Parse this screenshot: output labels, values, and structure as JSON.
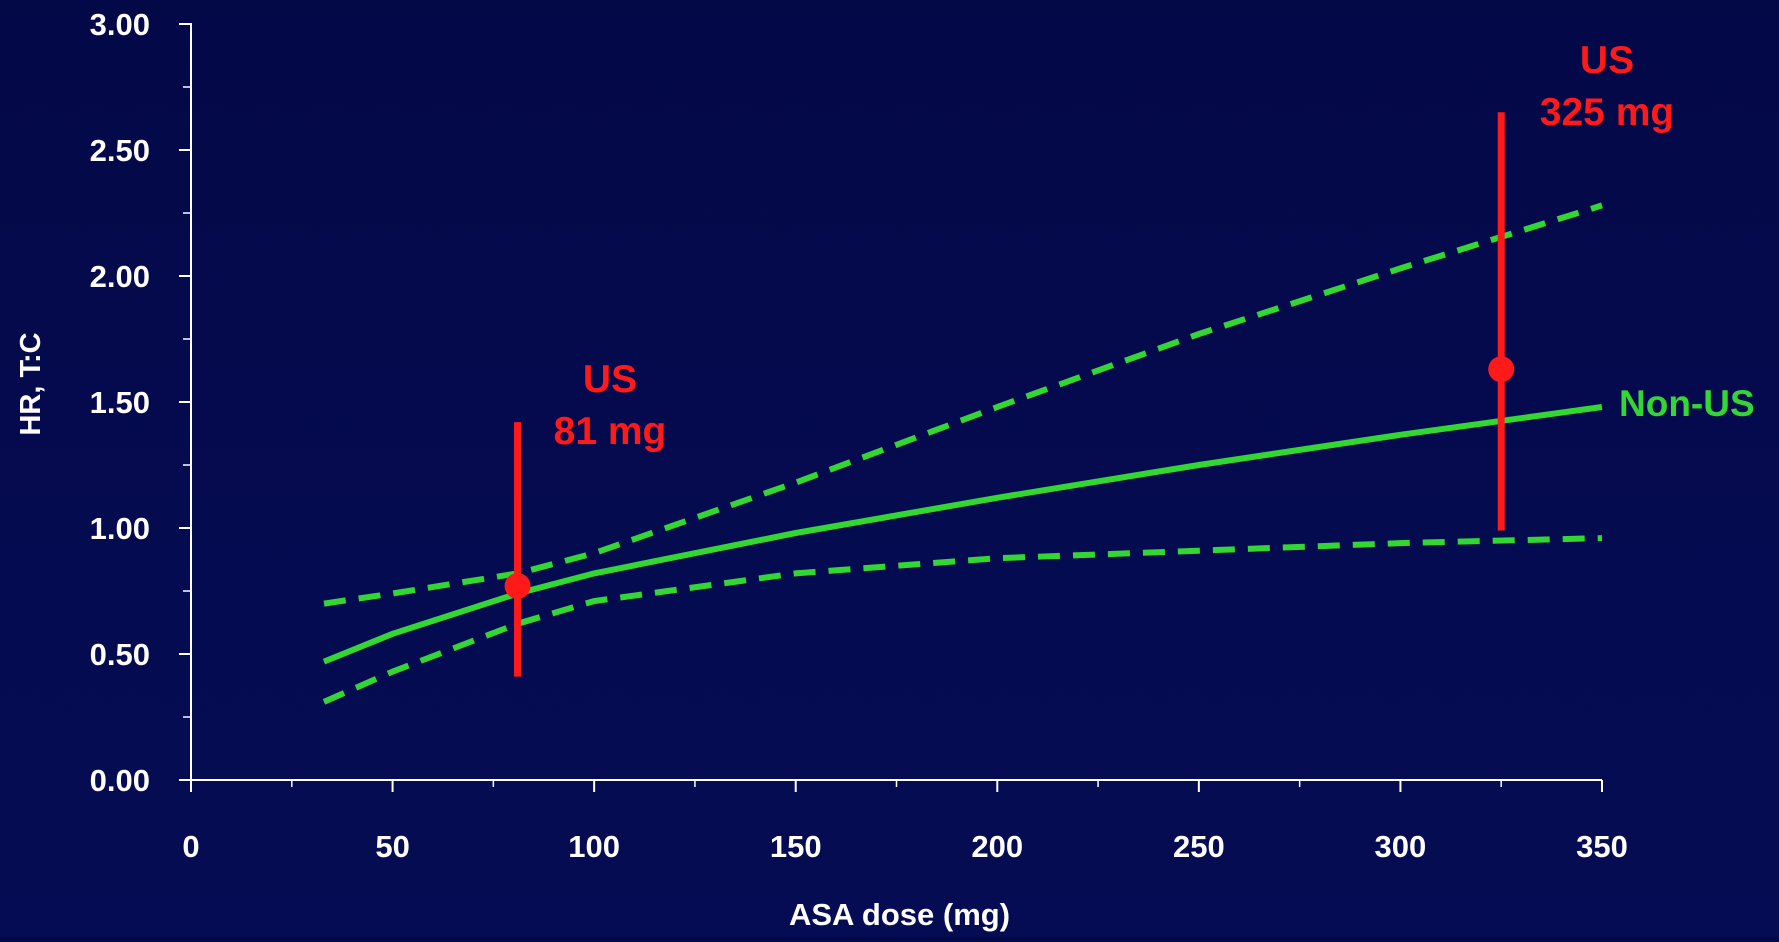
{
  "colors": {
    "background": "#040a4c",
    "axis": "#ffffff",
    "non_us": "#33d633",
    "us": "#ff1a1a"
  },
  "chart_data": {
    "type": "line",
    "xlabel": "ASA dose  (mg)",
    "ylabel": "HR, T:C",
    "xlim": [
      0,
      350
    ],
    "ylim": [
      0,
      3
    ],
    "x_ticks": [
      0,
      50,
      100,
      150,
      200,
      250,
      300,
      350
    ],
    "x_tick_labels": [
      "0",
      "50",
      "100",
      "150",
      "200",
      "250",
      "300",
      "350"
    ],
    "y_ticks": [
      0,
      0.5,
      1,
      1.5,
      2,
      2.5,
      3
    ],
    "y_tick_labels": [
      "0.00",
      "0.50",
      "1.00",
      "1.50",
      "2.00",
      "2.50",
      "3.00"
    ],
    "grid": false,
    "series": [
      {
        "name": "Non-US",
        "style": "solid",
        "x": [
          33,
          50,
          81,
          100,
          150,
          200,
          250,
          300,
          350
        ],
        "y": [
          0.47,
          0.58,
          0.74,
          0.82,
          0.98,
          1.12,
          1.25,
          1.37,
          1.48
        ]
      },
      {
        "role": "upper-ci",
        "style": "dashed",
        "x": [
          33,
          50,
          81,
          100,
          150,
          200,
          250,
          300,
          350
        ],
        "y": [
          0.7,
          0.74,
          0.82,
          0.9,
          1.18,
          1.48,
          1.77,
          2.03,
          2.28
        ]
      },
      {
        "role": "lower-ci",
        "style": "dashed",
        "x": [
          33,
          50,
          81,
          100,
          150,
          200,
          250,
          300,
          350
        ],
        "y": [
          0.31,
          0.43,
          0.62,
          0.71,
          0.82,
          0.88,
          0.91,
          0.94,
          0.96
        ]
      }
    ],
    "points": [
      {
        "x": 81,
        "y": 0.77,
        "ci_low": 0.41,
        "ci_high": 1.42,
        "label": [
          "US",
          "81 mg"
        ]
      },
      {
        "x": 325,
        "y": 1.63,
        "ci_low": 0.99,
        "ci_high": 2.65,
        "label": [
          "US",
          "325 mg"
        ]
      }
    ],
    "annotations": [
      {
        "text": "Non-US",
        "color": "#33d633"
      }
    ]
  }
}
